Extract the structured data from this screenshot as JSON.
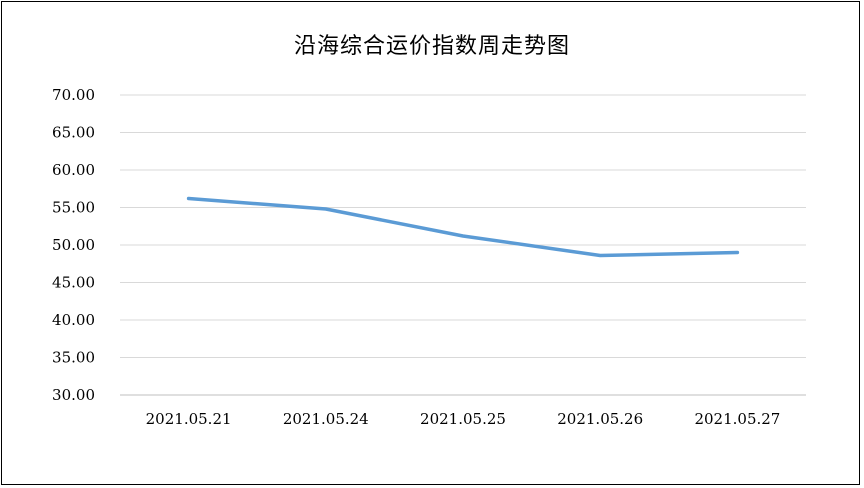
{
  "chart_data": {
    "type": "line",
    "title": "沿海综合运价指数周走势图",
    "xlabel": "",
    "ylabel": "",
    "categories": [
      "2021.05.21",
      "2021.05.24",
      "2021.05.25",
      "2021.05.26",
      "2021.05.27"
    ],
    "series": [
      {
        "values": [
          56.2,
          54.8,
          51.2,
          48.6,
          49.0
        ],
        "color": "#5b9bd5"
      }
    ],
    "ylim": [
      30,
      70
    ],
    "yticks": [
      "30.00",
      "35.00",
      "40.00",
      "45.00",
      "50.00",
      "55.00",
      "60.00",
      "65.00",
      "70.00"
    ],
    "grid": true,
    "legend": "none"
  }
}
